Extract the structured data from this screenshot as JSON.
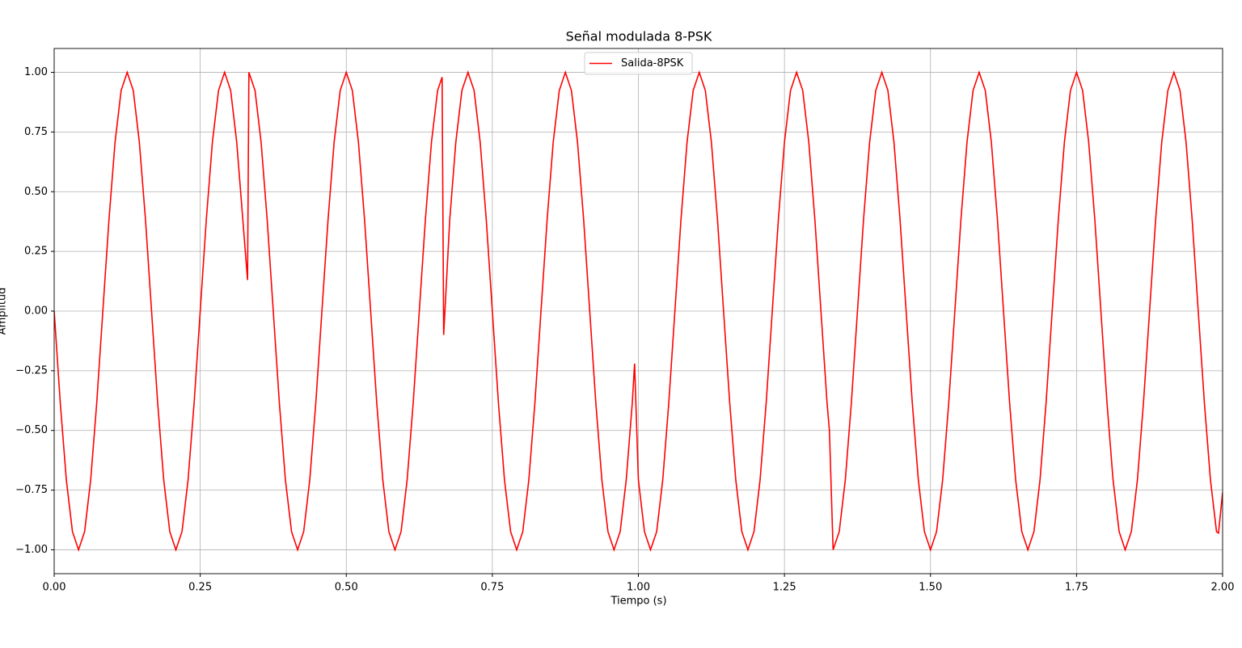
{
  "chart_data": {
    "type": "line",
    "title": "Señal modulada 8-PSK",
    "xlabel": "Tiempo (s)",
    "ylabel": "Amplitud",
    "xlim": [
      0,
      2
    ],
    "ylim": [
      -1.1,
      1.1
    ],
    "xticks": [
      {
        "value": 0,
        "label": "0.00"
      },
      {
        "value": 0.25,
        "label": "0.25"
      },
      {
        "value": 0.5,
        "label": "0.50"
      },
      {
        "value": 0.75,
        "label": "0.75"
      },
      {
        "value": 1,
        "label": "1.00"
      },
      {
        "value": 1.25,
        "label": "1.25"
      },
      {
        "value": 1.5,
        "label": "1.50"
      },
      {
        "value": 1.75,
        "label": "1.75"
      },
      {
        "value": 2,
        "label": "2.00"
      }
    ],
    "yticks": [
      {
        "value": -1,
        "label": "−1.00"
      },
      {
        "value": -0.75,
        "label": "−0.75"
      },
      {
        "value": -0.5,
        "label": "−0.50"
      },
      {
        "value": -0.25,
        "label": "−0.25"
      },
      {
        "value": 0,
        "label": "0.00"
      },
      {
        "value": 0.25,
        "label": "0.25"
      },
      {
        "value": 0.5,
        "label": "0.50"
      },
      {
        "value": 0.75,
        "label": "0.75"
      },
      {
        "value": 1,
        "label": "1.00"
      }
    ],
    "grid": true,
    "legend": "upper center",
    "series": [
      {
        "name": "Salida-8PSK",
        "color": "#ff0000",
        "x": [
          0,
          0.0104,
          0.0208,
          0.0313,
          0.0417,
          0.0521,
          0.0625,
          0.0729,
          0.0833,
          0.0938,
          0.1042,
          0.1146,
          0.125,
          0.1354,
          0.1458,
          0.1563,
          0.1667,
          0.1771,
          0.1875,
          0.1979,
          0.2083,
          0.2188,
          0.2292,
          0.2396,
          0.25,
          0.2604,
          0.2708,
          0.2813,
          0.2917,
          0.3021,
          0.3125,
          0.3229,
          0.331,
          0.3333,
          0.3438,
          0.3542,
          0.3646,
          0.375,
          0.3854,
          0.3958,
          0.4063,
          0.4167,
          0.4271,
          0.4375,
          0.4479,
          0.4583,
          0.4688,
          0.4792,
          0.4896,
          0.5,
          0.5104,
          0.5208,
          0.5313,
          0.5417,
          0.5521,
          0.5625,
          0.5729,
          0.5833,
          0.5938,
          0.6042,
          0.6146,
          0.625,
          0.6354,
          0.6458,
          0.6563,
          0.664,
          0.6667,
          0.6771,
          0.6875,
          0.6979,
          0.7083,
          0.7188,
          0.7292,
          0.7396,
          0.75,
          0.7604,
          0.7708,
          0.7813,
          0.7917,
          0.8021,
          0.8125,
          0.8229,
          0.8333,
          0.8438,
          0.8542,
          0.8646,
          0.875,
          0.8854,
          0.8958,
          0.9063,
          0.9167,
          0.9271,
          0.9375,
          0.9479,
          0.9583,
          0.9688,
          0.9792,
          0.9896,
          0.9935,
          1,
          1.0104,
          1.0208,
          1.0313,
          1.0417,
          1.0521,
          1.0625,
          1.0729,
          1.0833,
          1.0938,
          1.1042,
          1.1146,
          1.125,
          1.1354,
          1.1458,
          1.1563,
          1.1667,
          1.1771,
          1.1875,
          1.1979,
          1.2083,
          1.2188,
          1.2292,
          1.2396,
          1.25,
          1.2604,
          1.2708,
          1.2813,
          1.2917,
          1.3021,
          1.3125,
          1.3229,
          1.327,
          1.3333,
          1.3438,
          1.3542,
          1.3646,
          1.375,
          1.3854,
          1.3958,
          1.4063,
          1.4167,
          1.4271,
          1.4375,
          1.4479,
          1.4583,
          1.4688,
          1.4792,
          1.4896,
          1.5,
          1.5104,
          1.5208,
          1.5313,
          1.5417,
          1.5521,
          1.5625,
          1.5729,
          1.5833,
          1.5938,
          1.6042,
          1.6146,
          1.625,
          1.6354,
          1.6458,
          1.6563,
          1.6667,
          1.6771,
          1.6875,
          1.6979,
          1.7083,
          1.7188,
          1.7292,
          1.7396,
          1.75,
          1.7604,
          1.7708,
          1.7813,
          1.7917,
          1.8021,
          1.8125,
          1.8229,
          1.8333,
          1.8438,
          1.8542,
          1.8646,
          1.875,
          1.8854,
          1.8958,
          1.9063,
          1.9167,
          1.9271,
          1.9375,
          1.9479,
          1.9583,
          1.9688,
          1.9792,
          1.9896,
          1.993,
          2
        ],
        "values": [
          0,
          -0.383,
          -0.707,
          -0.924,
          -1,
          -0.924,
          -0.707,
          -0.383,
          0,
          0.383,
          0.707,
          0.924,
          1,
          0.924,
          0.707,
          0.383,
          0,
          -0.383,
          -0.707,
          -0.924,
          -1,
          -0.924,
          -0.707,
          -0.383,
          0,
          0.383,
          0.707,
          0.924,
          1,
          0.924,
          0.707,
          0.383,
          0.13,
          1,
          0.924,
          0.707,
          0.383,
          0,
          -0.383,
          -0.707,
          -0.924,
          -1,
          -0.924,
          -0.707,
          -0.383,
          0,
          0.383,
          0.707,
          0.924,
          1,
          0.924,
          0.707,
          0.383,
          0,
          -0.383,
          -0.707,
          -0.924,
          -1,
          -0.924,
          -0.707,
          -0.383,
          0,
          0.383,
          0.707,
          0.924,
          0.98,
          -0.1,
          0.383,
          0.707,
          0.924,
          1,
          0.924,
          0.707,
          0.383,
          0,
          -0.383,
          -0.707,
          -0.924,
          -1,
          -0.924,
          -0.707,
          -0.383,
          0,
          0.383,
          0.707,
          0.924,
          1,
          0.924,
          0.707,
          0.383,
          0,
          -0.383,
          -0.707,
          -0.924,
          -1,
          -0.924,
          -0.707,
          -0.383,
          -0.22,
          -0.707,
          -0.924,
          -1,
          -0.924,
          -0.707,
          -0.383,
          0,
          0.383,
          0.707,
          0.924,
          1,
          0.924,
          0.707,
          0.383,
          0,
          -0.383,
          -0.707,
          -0.924,
          -1,
          -0.924,
          -0.707,
          -0.383,
          0,
          0.383,
          0.707,
          0.924,
          1,
          0.924,
          0.707,
          0.383,
          0,
          -0.383,
          -0.5,
          -1,
          -0.924,
          -0.707,
          -0.383,
          0,
          0.383,
          0.707,
          0.924,
          1,
          0.924,
          0.707,
          0.383,
          0,
          -0.383,
          -0.707,
          -0.924,
          -1,
          -0.924,
          -0.707,
          -0.383,
          0,
          0.383,
          0.707,
          0.924,
          1,
          0.924,
          0.707,
          0.383,
          0,
          -0.383,
          -0.707,
          -0.924,
          -1,
          -0.924,
          -0.707,
          -0.383,
          0,
          0.383,
          0.707,
          0.924,
          1,
          0.924,
          0.707,
          0.383,
          0,
          -0.383,
          -0.707,
          -0.924,
          -1,
          -0.924,
          -0.707,
          -0.383,
          0,
          0.383,
          0.707,
          0.924,
          1,
          0.924,
          0.707,
          0.383,
          0,
          -0.383,
          -0.707,
          -0.924,
          -0.93,
          -0.76
        ]
      }
    ]
  }
}
